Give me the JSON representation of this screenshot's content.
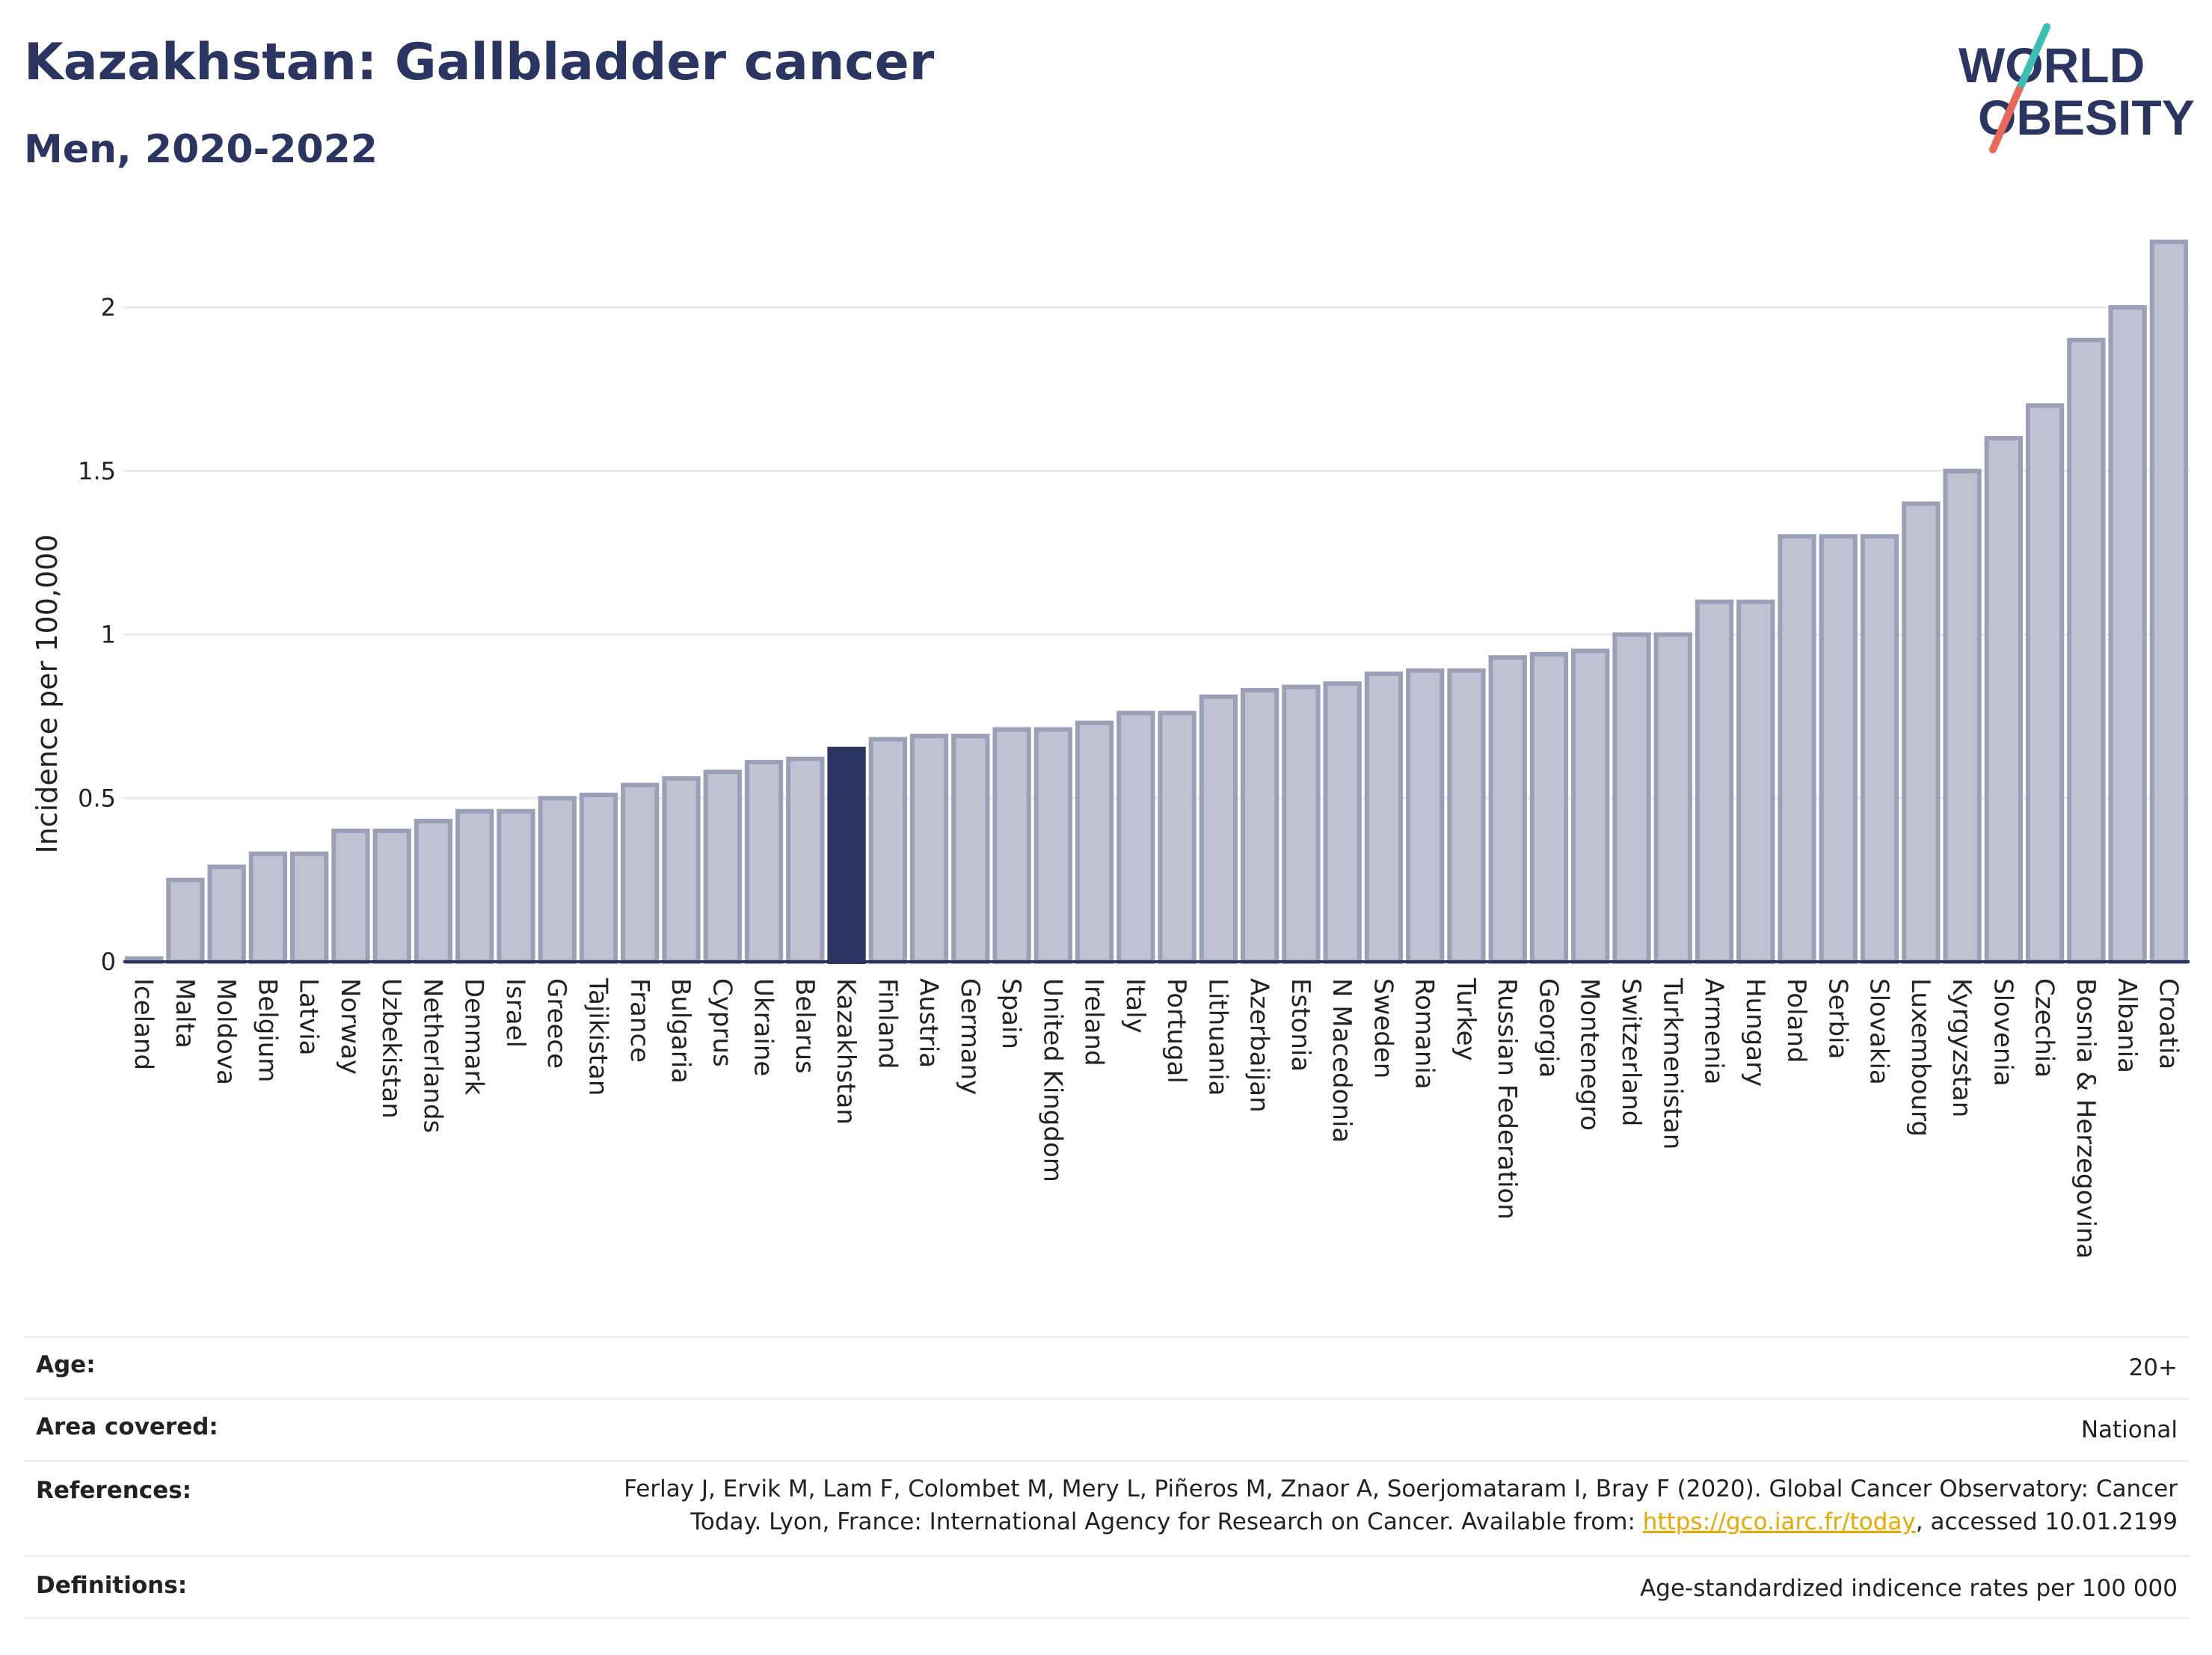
{
  "header": {
    "title": "Kazakhstan: Gallbladder cancer",
    "subtitle": "Men, 2020-2022"
  },
  "logo": {
    "line1": "WORLD",
    "line2": "OBESITY",
    "accent_teal": "#3bbfb0",
    "accent_red": "#e8685a",
    "color": "#2b3561"
  },
  "chart_data": {
    "type": "bar",
    "ylabel": "Incidence per 100,000",
    "xlabel": "",
    "ylim": [
      0,
      2.2
    ],
    "yticks": [
      0,
      0.5,
      1,
      1.5,
      2
    ],
    "ytick_labels": [
      "0",
      "0.5",
      "1",
      "1.5",
      "2"
    ],
    "highlight": "Kazakhstan",
    "bar_color": "#bfc3d1",
    "bar_edge_color": "#9ba0b8",
    "highlight_color": "#2b3561",
    "categories": [
      "Iceland",
      "Malta",
      "Moldova",
      "Belgium",
      "Latvia",
      "Norway",
      "Uzbekistan",
      "Netherlands",
      "Denmark",
      "Israel",
      "Greece",
      "Tajikistan",
      "France",
      "Bulgaria",
      "Cyprus",
      "Ukraine",
      "Belarus",
      "Kazakhstan",
      "Finland",
      "Austria",
      "Germany",
      "Spain",
      "United Kingdom",
      "Ireland",
      "Italy",
      "Portugal",
      "Lithuania",
      "Azerbaijan",
      "Estonia",
      "N Macedonia",
      "Sweden",
      "Romania",
      "Turkey",
      "Russian Federation",
      "Georgia",
      "Montenegro",
      "Switzerland",
      "Turkmenistan",
      "Armenia",
      "Hungary",
      "Poland",
      "Serbia",
      "Slovakia",
      "Luxembourg",
      "Kyrgyzstan",
      "Slovenia",
      "Czechia",
      "Bosnia & Herzegovina",
      "Albania",
      "Croatia"
    ],
    "values": [
      0.01,
      0.25,
      0.29,
      0.33,
      0.33,
      0.4,
      0.4,
      0.43,
      0.46,
      0.46,
      0.5,
      0.51,
      0.54,
      0.56,
      0.58,
      0.61,
      0.62,
      0.65,
      0.68,
      0.69,
      0.69,
      0.71,
      0.71,
      0.73,
      0.76,
      0.76,
      0.81,
      0.83,
      0.84,
      0.85,
      0.88,
      0.89,
      0.89,
      0.93,
      0.94,
      0.95,
      1.0,
      1.0,
      1.1,
      1.1,
      1.3,
      1.3,
      1.3,
      1.4,
      1.5,
      1.6,
      1.7,
      1.9,
      2.0,
      2.2
    ]
  },
  "info": {
    "age": {
      "label": "Age:",
      "value": "20+"
    },
    "area": {
      "label": "Area covered:",
      "value": "National"
    },
    "references": {
      "label": "References:",
      "line1": "Ferlay J, Ervik M, Lam F, Colombet M, Mery L, Piñeros M, Znaor A, Soerjomataram I, Bray F (2020). Global Cancer Observatory: Cancer",
      "line2_prefix": "Today. Lyon, France: International Agency for Research on Cancer. Available from: ",
      "link": "https://gco.iarc.fr/today",
      "line2_suffix": ", accessed 10.01.2199"
    },
    "definitions": {
      "label": "Definitions:",
      "value": "Age-standardized indicence rates per 100 000"
    }
  }
}
